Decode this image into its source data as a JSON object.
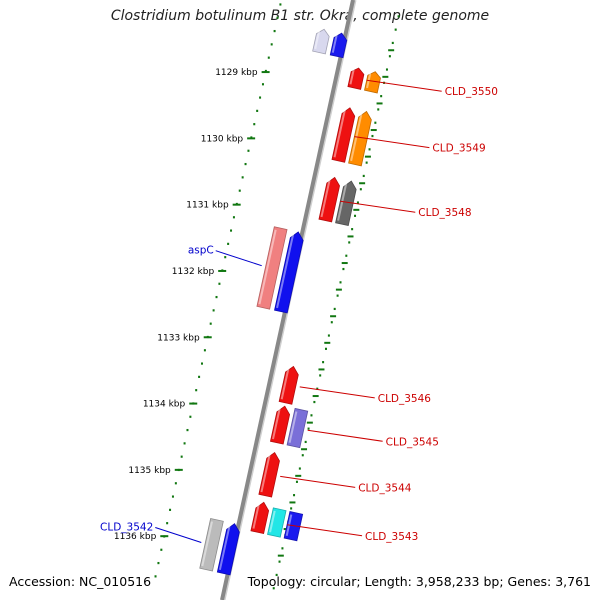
{
  "title": "Clostridium botulinum B1 str. Okra, complete genome",
  "footer": {
    "accession": "Accession: NC_010516",
    "summary": "Topology: circular; Length: 3,958,233 bp; Genes: 3,761"
  },
  "colors": {
    "backbone": "#888888",
    "tick": "#117711",
    "label_right": "#cc0000",
    "label_left": "#0000cc"
  },
  "ticks": [
    {
      "kbp": 1129,
      "label": "1129 kbp"
    },
    {
      "kbp": 1130,
      "label": "1130 kbp"
    },
    {
      "kbp": 1131,
      "label": "1131 kbp"
    },
    {
      "kbp": 1132,
      "label": "1132 kbp"
    },
    {
      "kbp": 1133,
      "label": "1133 kbp"
    },
    {
      "kbp": 1134,
      "label": "1134 kbp"
    },
    {
      "kbp": 1135,
      "label": "1135 kbp"
    },
    {
      "kbp": 1136,
      "label": "1136 kbp"
    }
  ],
  "genes": [
    {
      "label": "",
      "side": "left",
      "start": 1128.2,
      "end": 1128.55,
      "color": "#d8d8ee",
      "lane": 1,
      "strand": 1
    },
    {
      "label": "",
      "side": "left",
      "start": 1128.2,
      "end": 1128.55,
      "color": "#1a1aee",
      "lane": 2,
      "strand": 1
    },
    {
      "label": "CLD_3550",
      "side": "right",
      "start": 1128.65,
      "end": 1128.95,
      "color": "#ee1111",
      "lane": 1,
      "strand": 1
    },
    {
      "label": "",
      "side": "right",
      "start": 1128.65,
      "end": 1128.95,
      "color": "#ff8c00",
      "lane": 2,
      "strand": 1
    },
    {
      "label": "CLD_3549",
      "side": "right",
      "start": 1129.25,
      "end": 1130.05,
      "color": "#ee1111",
      "lane": 1,
      "strand": 1
    },
    {
      "label": "",
      "side": "right",
      "start": 1129.25,
      "end": 1130.05,
      "color": "#ff8c00",
      "lane": 2,
      "strand": 1
    },
    {
      "label": "CLD_3548",
      "side": "right",
      "start": 1130.3,
      "end": 1130.95,
      "color": "#ee1111",
      "lane": 1,
      "strand": 1
    },
    {
      "label": "",
      "side": "right",
      "start": 1130.3,
      "end": 1130.95,
      "color": "#666666",
      "lane": 2,
      "strand": 1
    },
    {
      "label": "aspC",
      "side": "left",
      "start": 1131.2,
      "end": 1132.4,
      "color": "#f08080",
      "lane": 1,
      "strand": 0
    },
    {
      "label": "",
      "side": "left",
      "start": 1131.2,
      "end": 1132.4,
      "color": "#1010ee",
      "lane": 2,
      "strand": 1
    },
    {
      "label": "CLD_3546",
      "side": "right",
      "start": 1133.15,
      "end": 1133.7,
      "color": "#ee1111",
      "lane": 1,
      "strand": 1
    },
    {
      "label": "",
      "side": "right",
      "start": 1133.75,
      "end": 1134.3,
      "color": "#ee1111",
      "lane": 1,
      "strand": 1
    },
    {
      "label": "CLD_3545",
      "side": "right",
      "start": 1133.75,
      "end": 1134.3,
      "color": "#7a6fd8",
      "lane": 2,
      "strand": 0
    },
    {
      "label": "CLD_3544",
      "side": "right",
      "start": 1134.45,
      "end": 1135.1,
      "color": "#ee1111",
      "lane": 1,
      "strand": 1
    },
    {
      "label": "",
      "side": "right",
      "start": 1135.2,
      "end": 1135.65,
      "color": "#ee1111",
      "lane": 1,
      "strand": 1
    },
    {
      "label": "CLD_3543",
      "side": "right",
      "start": 1135.25,
      "end": 1135.65,
      "color": "#22e6e6",
      "lane": 2,
      "strand": 0
    },
    {
      "label": "",
      "side": "right",
      "start": 1135.25,
      "end": 1135.65,
      "color": "#1a1aee",
      "lane": 3,
      "strand": 0
    },
    {
      "label": "CLD_3542",
      "side": "left",
      "start": 1135.6,
      "end": 1136.35,
      "color": "#bbbbbb",
      "lane": 1,
      "strand": 0
    },
    {
      "label": "",
      "side": "left",
      "start": 1135.6,
      "end": 1136.35,
      "color": "#1010ee",
      "lane": 2,
      "strand": 1
    }
  ]
}
